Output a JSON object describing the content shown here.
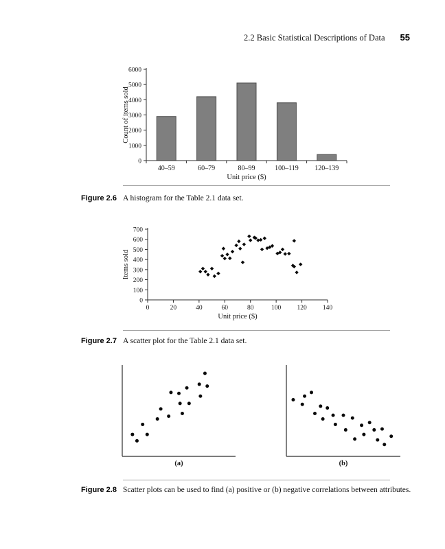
{
  "header": {
    "section": "2.2 Basic Statistical Descriptions of Data",
    "page_number": "55"
  },
  "figures": {
    "fig26": {
      "label": "Figure 2.6",
      "caption": "A histogram for the Table 2.1 data set."
    },
    "fig27": {
      "label": "Figure 2.7",
      "caption": "A scatter plot for the Table 2.1 data set."
    },
    "fig28": {
      "label": "Figure 2.8",
      "caption": "Scatter plots can be used to find (a) positive or (b) negative correlations between attributes."
    }
  },
  "colors": {
    "bar_fill": "#7f7f7f",
    "bar_stroke": "#4d4d4d",
    "axis": "#2e2e2e",
    "marker": "#0a0a0a",
    "text": "#161616"
  },
  "chart_data": [
    {
      "id": "histogram",
      "type": "bar",
      "title": "",
      "categories": [
        "40–59",
        "60–79",
        "80–99",
        "100–119",
        "120–139"
      ],
      "values": [
        2900,
        4200,
        5100,
        3800,
        400
      ],
      "xlabel": "Unit price ($)",
      "ylabel": "Count of items sold",
      "ylim": [
        0,
        6000
      ],
      "yticks": [
        0,
        1000,
        2000,
        3000,
        4000,
        5000,
        6000
      ],
      "grid": false,
      "legend": "none"
    },
    {
      "id": "scatter_price_items",
      "type": "scatter",
      "title": "",
      "xlabel": "Unit price ($)",
      "ylabel": "Items sold",
      "xlim": [
        0,
        140
      ],
      "ylim": [
        0,
        700
      ],
      "xticks": [
        0,
        20,
        40,
        60,
        80,
        100,
        120,
        140
      ],
      "yticks": [
        0,
        100,
        200,
        300,
        400,
        500,
        600,
        700
      ],
      "marker": "diamond",
      "grid": false,
      "points": [
        [
          41,
          280
        ],
        [
          43,
          310
        ],
        [
          45,
          280
        ],
        [
          47,
          250
        ],
        [
          50,
          310
        ],
        [
          52,
          235
        ],
        [
          55,
          262
        ],
        [
          58,
          437
        ],
        [
          59,
          508
        ],
        [
          60,
          410
        ],
        [
          62,
          450
        ],
        [
          64,
          412
        ],
        [
          66,
          478
        ],
        [
          69,
          540
        ],
        [
          71,
          580
        ],
        [
          72,
          508
        ],
        [
          74,
          372
        ],
        [
          75,
          550
        ],
        [
          79,
          630
        ],
        [
          80,
          590
        ],
        [
          83,
          618
        ],
        [
          84,
          612
        ],
        [
          86,
          590
        ],
        [
          88,
          595
        ],
        [
          89,
          500
        ],
        [
          91,
          610
        ],
        [
          93,
          512
        ],
        [
          95,
          522
        ],
        [
          97,
          535
        ],
        [
          101,
          460
        ],
        [
          103,
          470
        ],
        [
          105,
          500
        ],
        [
          107,
          455
        ],
        [
          110,
          458
        ],
        [
          113,
          340
        ],
        [
          114,
          585
        ],
        [
          114,
          330
        ],
        [
          116,
          272
        ],
        [
          119,
          352
        ]
      ]
    },
    {
      "id": "scatter_positive",
      "type": "scatter",
      "sublabel": "(a)",
      "correlation": "positive",
      "marker": "dot",
      "xlim": [
        0,
        1
      ],
      "ylim": [
        0,
        1
      ],
      "axes": "frame-only",
      "points": [
        [
          0.09,
          0.24
        ],
        [
          0.13,
          0.17
        ],
        [
          0.18,
          0.35
        ],
        [
          0.22,
          0.24
        ],
        [
          0.31,
          0.41
        ],
        [
          0.34,
          0.52
        ],
        [
          0.41,
          0.44
        ],
        [
          0.43,
          0.7
        ],
        [
          0.5,
          0.69
        ],
        [
          0.51,
          0.58
        ],
        [
          0.53,
          0.47
        ],
        [
          0.57,
          0.75
        ],
        [
          0.59,
          0.58
        ],
        [
          0.68,
          0.79
        ],
        [
          0.69,
          0.66
        ],
        [
          0.73,
          0.91
        ],
        [
          0.75,
          0.77
        ]
      ]
    },
    {
      "id": "scatter_negative",
      "type": "scatter",
      "sublabel": "(b)",
      "correlation": "negative",
      "marker": "dot",
      "xlim": [
        0,
        1
      ],
      "ylim": [
        0,
        1
      ],
      "axes": "frame-only",
      "points": [
        [
          0.06,
          0.62
        ],
        [
          0.14,
          0.57
        ],
        [
          0.16,
          0.66
        ],
        [
          0.22,
          0.7
        ],
        [
          0.25,
          0.47
        ],
        [
          0.3,
          0.55
        ],
        [
          0.32,
          0.41
        ],
        [
          0.36,
          0.53
        ],
        [
          0.41,
          0.45
        ],
        [
          0.43,
          0.35
        ],
        [
          0.5,
          0.45
        ],
        [
          0.52,
          0.29
        ],
        [
          0.58,
          0.42
        ],
        [
          0.6,
          0.19
        ],
        [
          0.66,
          0.34
        ],
        [
          0.68,
          0.24
        ],
        [
          0.73,
          0.37
        ],
        [
          0.77,
          0.29
        ],
        [
          0.8,
          0.18
        ],
        [
          0.84,
          0.3
        ],
        [
          0.86,
          0.13
        ],
        [
          0.92,
          0.22
        ]
      ]
    }
  ]
}
